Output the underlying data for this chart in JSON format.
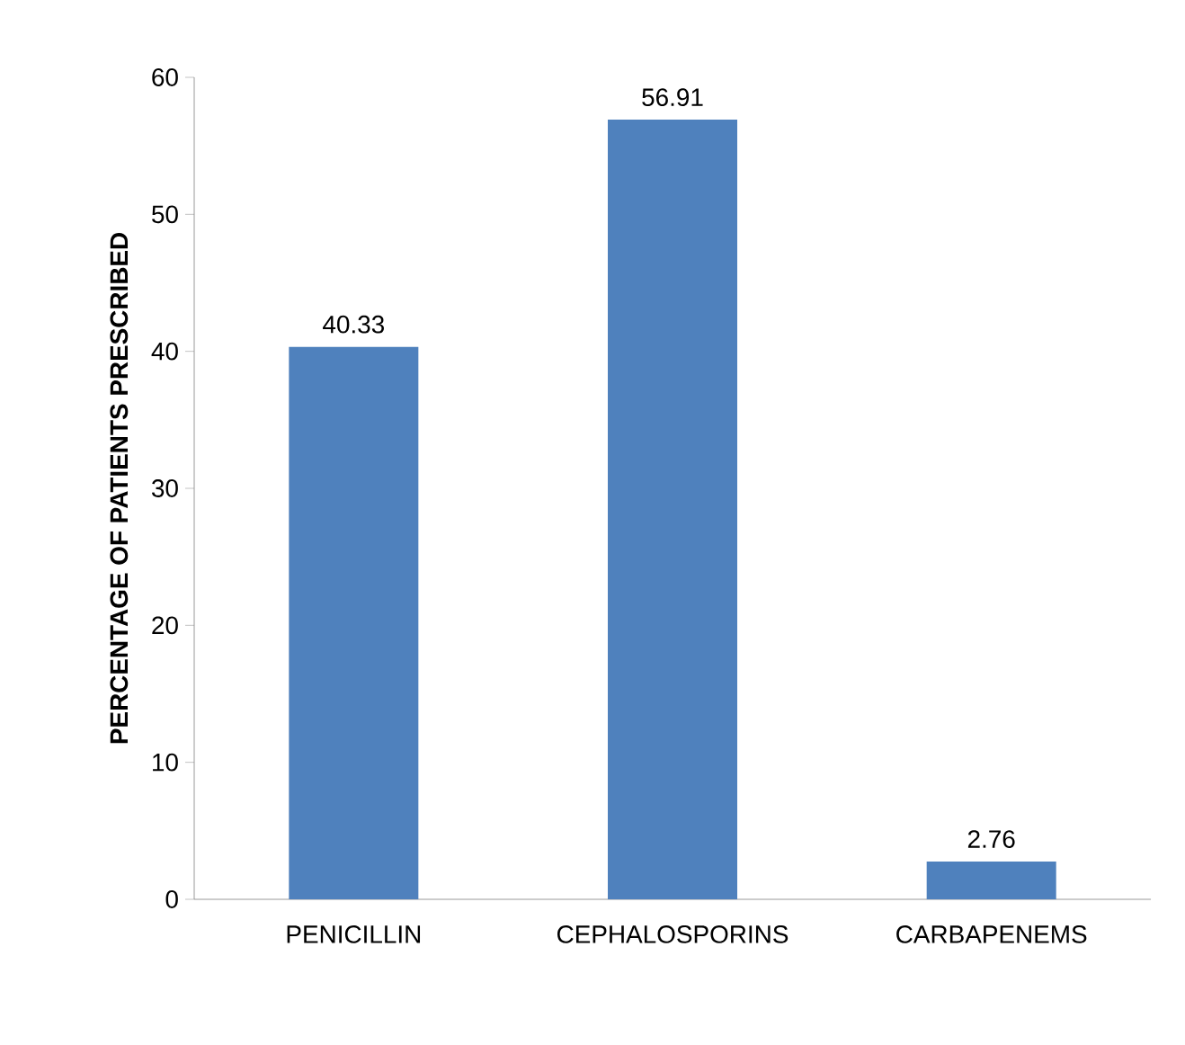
{
  "chart_data": {
    "type": "bar",
    "ylabel": "PERCENTAGE OF PATIENTS PRESCRIBED",
    "categories": [
      "PENICILLIN",
      "CEPHALOSPORINS",
      "CARBAPENEMS"
    ],
    "values": [
      40.33,
      56.91,
      2.76
    ],
    "color": "#4f81bd",
    "ylim": [
      0,
      60
    ],
    "yticks": [
      0,
      10,
      20,
      30,
      40,
      50,
      60
    ],
    "data_labels": true,
    "grid": false
  }
}
